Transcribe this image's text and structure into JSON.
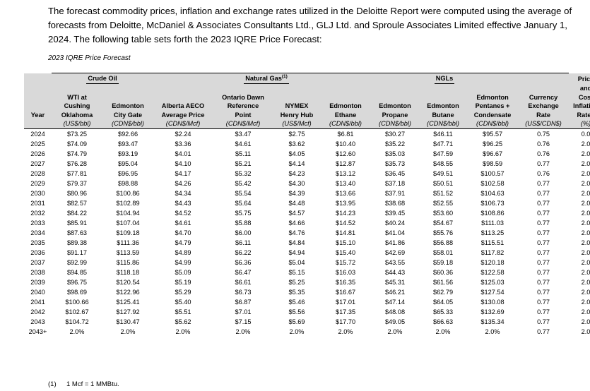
{
  "intro_text": "The forecast commodity prices, inflation and exchange rates utilized in the Deloitte Report were computed using the average of forecasts from Deloitte, McDaniel & Associates Consultants Ltd., GLJ Ltd. and Sproule Associates Limited effective January 1, 2024. The following table sets forth the 2023 IQRE Price Forecast:",
  "caption": "2023 IQRE Price Forecast",
  "groups": {
    "crude_oil": "Crude Oil",
    "natural_gas": "Natural Gas",
    "natural_gas_note": "(1)",
    "ngls": "NGLs",
    "price_cost_line1": "Price",
    "price_cost_line2": "and"
  },
  "headers": {
    "year": "Year",
    "wti_1": "WTI at",
    "wti_2": "Cushing",
    "wti_3": "Oklahoma",
    "edm_city_1": "Edmonton",
    "edm_city_2": "City Gate",
    "aeco_1": "Alberta AECO",
    "aeco_2": "Average Price",
    "dawn_1": "Ontario Dawn",
    "dawn_2": "Reference",
    "dawn_3": "Point",
    "nymex_1": "NYMEX",
    "nymex_2": "Henry Hub",
    "ethane_1": "Edmonton",
    "ethane_2": "Ethane",
    "propane_1": "Edmonton",
    "propane_2": "Propane",
    "butane_1": "Edmonton",
    "butane_2": "Butane",
    "pentanes_1": "Edmonton",
    "pentanes_2": "Pentanes +",
    "pentanes_3": "Condensate",
    "fx_1": "Currency",
    "fx_2": "Exchange",
    "fx_3": "Rate",
    "infl_1": "Cost",
    "infl_2": "Inflation",
    "infl_3": "Rates"
  },
  "units": [
    "",
    "(US$/bbl)",
    "(CDN$/bbl)",
    "(CDN$/Mcf)",
    "(CDN$/Mcf)",
    "(US$/Mcf)",
    "(CDN$/bbl)",
    "(CDN$/bbl)",
    "(CDN$/bbl)",
    "(CDN$/bbl)",
    "(US$/CDN$)",
    "(%)"
  ],
  "rows": [
    [
      "2024",
      "$73.25",
      "$92.66",
      "$2.24",
      "$3.47",
      "$2.75",
      "$6.81",
      "$30.27",
      "$46.11",
      "$95.57",
      "0.75",
      "0.0"
    ],
    [
      "2025",
      "$74.09",
      "$93.47",
      "$3.36",
      "$4.61",
      "$3.62",
      "$10.40",
      "$35.22",
      "$47.71",
      "$96.25",
      "0.76",
      "2.0"
    ],
    [
      "2026",
      "$74.79",
      "$93.19",
      "$4.01",
      "$5.11",
      "$4.05",
      "$12.60",
      "$35.03",
      "$47.59",
      "$96.67",
      "0.76",
      "2.0"
    ],
    [
      "2027",
      "$76.28",
      "$95.04",
      "$4.10",
      "$5.21",
      "$4.14",
      "$12.87",
      "$35.73",
      "$48.55",
      "$98.59",
      "0.77",
      "2.0"
    ],
    [
      "2028",
      "$77.81",
      "$96.95",
      "$4.17",
      "$5.32",
      "$4.23",
      "$13.12",
      "$36.45",
      "$49.51",
      "$100.57",
      "0.76",
      "2.0"
    ],
    [
      "2029",
      "$79.37",
      "$98.88",
      "$4.26",
      "$5.42",
      "$4.30",
      "$13.40",
      "$37.18",
      "$50.51",
      "$102.58",
      "0.77",
      "2.0"
    ],
    [
      "2030",
      "$80.96",
      "$100.86",
      "$4.34",
      "$5.54",
      "$4.39",
      "$13.66",
      "$37.91",
      "$51.52",
      "$104.63",
      "0.77",
      "2.0"
    ],
    [
      "2031",
      "$82.57",
      "$102.89",
      "$4.43",
      "$5.64",
      "$4.48",
      "$13.95",
      "$38.68",
      "$52.55",
      "$106.73",
      "0.77",
      "2.0"
    ],
    [
      "2032",
      "$84.22",
      "$104.94",
      "$4.52",
      "$5.75",
      "$4.57",
      "$14.23",
      "$39.45",
      "$53.60",
      "$108.86",
      "0.77",
      "2.0"
    ],
    [
      "2033",
      "$85.91",
      "$107.04",
      "$4.61",
      "$5.88",
      "$4.66",
      "$14.52",
      "$40.24",
      "$54.67",
      "$111.03",
      "0.77",
      "2.0"
    ],
    [
      "2034",
      "$87.63",
      "$109.18",
      "$4.70",
      "$6.00",
      "$4.76",
      "$14.81",
      "$41.04",
      "$55.76",
      "$113.25",
      "0.77",
      "2.0"
    ],
    [
      "2035",
      "$89.38",
      "$111.36",
      "$4.79",
      "$6.11",
      "$4.84",
      "$15.10",
      "$41.86",
      "$56.88",
      "$115.51",
      "0.77",
      "2.0"
    ],
    [
      "2036",
      "$91.17",
      "$113.59",
      "$4.89",
      "$6.22",
      "$4.94",
      "$15.40",
      "$42.69",
      "$58.01",
      "$117.82",
      "0.77",
      "2.0"
    ],
    [
      "2037",
      "$92.99",
      "$115.86",
      "$4.99",
      "$6.36",
      "$5.04",
      "$15.72",
      "$43.55",
      "$59.18",
      "$120.18",
      "0.77",
      "2.0"
    ],
    [
      "2038",
      "$94.85",
      "$118.18",
      "$5.09",
      "$6.47",
      "$5.15",
      "$16.03",
      "$44.43",
      "$60.36",
      "$122.58",
      "0.77",
      "2.0"
    ],
    [
      "2039",
      "$96.75",
      "$120.54",
      "$5.19",
      "$6.61",
      "$5.25",
      "$16.35",
      "$45.31",
      "$61.56",
      "$125.03",
      "0.77",
      "2.0"
    ],
    [
      "2040",
      "$98.69",
      "$122.96",
      "$5.29",
      "$6.73",
      "$5.35",
      "$16.67",
      "$46.21",
      "$62.79",
      "$127.54",
      "0.77",
      "2.0"
    ],
    [
      "2041",
      "$100.66",
      "$125.41",
      "$5.40",
      "$6.87",
      "$5.46",
      "$17.01",
      "$47.14",
      "$64.05",
      "$130.08",
      "0.77",
      "2.0"
    ],
    [
      "2042",
      "$102.67",
      "$127.92",
      "$5.51",
      "$7.01",
      "$5.56",
      "$17.35",
      "$48.08",
      "$65.33",
      "$132.69",
      "0.77",
      "2.0"
    ],
    [
      "2043",
      "$104.72",
      "$130.47",
      "$5.62",
      "$7.15",
      "$5.69",
      "$17.70",
      "$49.05",
      "$66.63",
      "$135.34",
      "0.77",
      "2.0"
    ],
    [
      "2043+",
      "2.0%",
      "2.0%",
      "2.0%",
      "2.0%",
      "2.0%",
      "2.0%",
      "2.0%",
      "2.0%",
      "2.0%",
      "0.77",
      "2.0"
    ]
  ],
  "footnote_num": "(1)",
  "footnote_text": "1 Mcf = 1 MMBtu."
}
